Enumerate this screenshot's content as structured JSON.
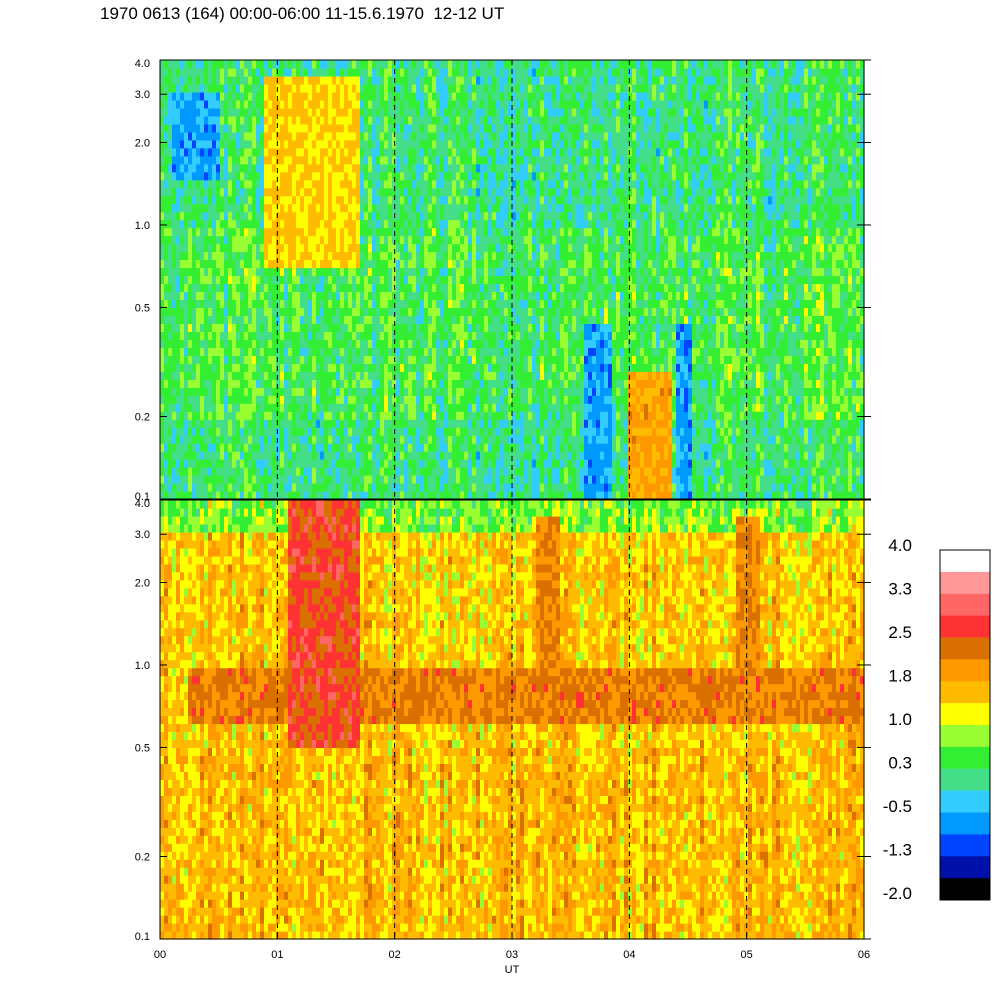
{
  "title": "1970 0613 (164) 00:00-06:00 11-15.6.1970  12-12 UT",
  "chart_data": {
    "type": "heatmap",
    "xlabel": "UT",
    "x_ticks": [
      "00",
      "01",
      "02",
      "03",
      "04",
      "05",
      "06"
    ],
    "xlim": [
      0,
      6
    ],
    "y_scale": "log",
    "ylim": [
      0.1,
      4.0
    ],
    "y_ticks": [
      "0.1",
      "0.2",
      "0.5",
      "1.0",
      "2.0",
      "3.0",
      "4.0"
    ],
    "vertical_markers_hours": [
      1,
      2,
      3,
      4,
      5
    ],
    "panels": [
      {
        "name": "upper",
        "background_level": 0.4,
        "features": [
          {
            "hours": [
              3.6,
              3.85
            ],
            "freq": [
              0.1,
              0.45
            ],
            "level": -0.6
          },
          {
            "hours": [
              4.0,
              4.35
            ],
            "freq": [
              0.1,
              0.3
            ],
            "level": 1.8
          },
          {
            "hours": [
              4.4,
              4.55
            ],
            "freq": [
              0.1,
              0.45
            ],
            "level": -0.6
          },
          {
            "hours": [
              0.9,
              1.7
            ],
            "freq": [
              0.7,
              3.5
            ],
            "level": 1.4
          },
          {
            "hours": [
              0.1,
              0.5
            ],
            "freq": [
              1.5,
              3.0
            ],
            "level": -0.6
          }
        ]
      },
      {
        "name": "lower",
        "background_level": 1.5,
        "features": [
          {
            "hours": [
              0.25,
              6.0
            ],
            "freq": [
              0.6,
              0.95
            ],
            "level": 2.2
          },
          {
            "hours": [
              1.1,
              1.7
            ],
            "freq": [
              0.5,
              4.0
            ],
            "level": 2.6
          },
          {
            "hours": [
              3.2,
              3.4
            ],
            "freq": [
              1.0,
              3.5
            ],
            "level": 2.1
          },
          {
            "hours": [
              4.9,
              5.1
            ],
            "freq": [
              1.0,
              3.5
            ],
            "level": 2.1
          }
        ]
      }
    ],
    "colorbar": {
      "labels": [
        "4.0",
        "3.3",
        "2.5",
        "1.8",
        "1.0",
        "0.3",
        "-0.5",
        "-1.3",
        "-2.0"
      ],
      "colors": [
        "#ffffff",
        "#ff9999",
        "#ff6666",
        "#ff3333",
        "#d97000",
        "#ff9900",
        "#ffbb00",
        "#ffff00",
        "#99ff33",
        "#33ee33",
        "#44dd88",
        "#33ccff",
        "#0099ff",
        "#0044ff",
        "#0011aa",
        "#000000"
      ]
    }
  }
}
